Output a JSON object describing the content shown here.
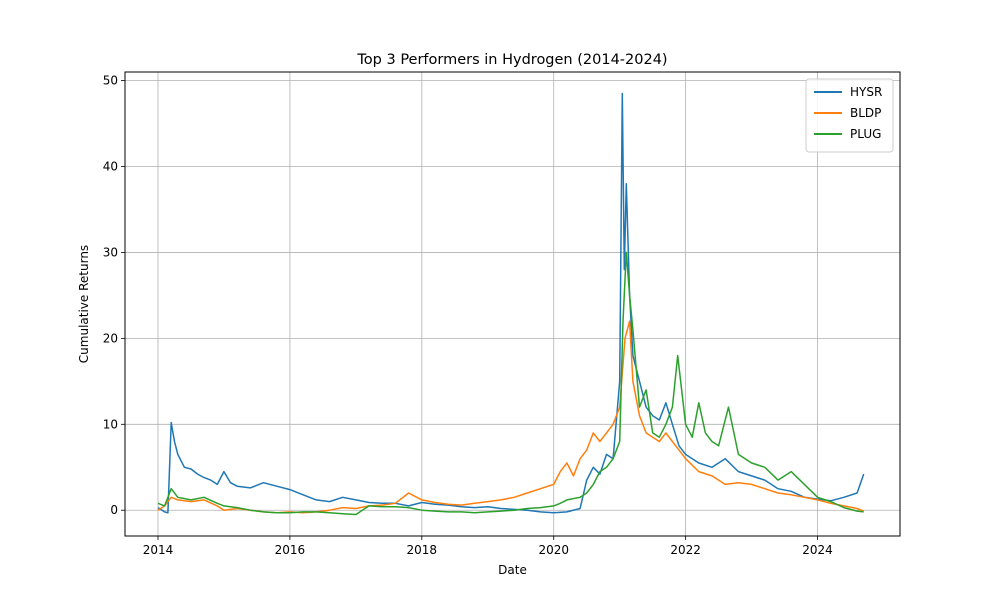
{
  "chart_data": {
    "type": "line",
    "title": "Top 3 Performers in Hydrogen (2014-2024)",
    "xlabel": "Date",
    "ylabel": "Cumulative Returns",
    "xlim": [
      2013.5,
      2025.25
    ],
    "ylim": [
      -3,
      51
    ],
    "x_ticks": [
      2014,
      2016,
      2018,
      2020,
      2022,
      2024
    ],
    "x_tick_labels": [
      "2014",
      "2016",
      "2018",
      "2020",
      "2022",
      "2024"
    ],
    "y_ticks": [
      0,
      10,
      20,
      30,
      40,
      50
    ],
    "y_tick_labels": [
      "0",
      "10",
      "20",
      "30",
      "40",
      "50"
    ],
    "grid": true,
    "legend_position": "top-right",
    "series": [
      {
        "name": "HYSR",
        "color": "#1f77b4",
        "x": [
          2014.0,
          2014.1,
          2014.15,
          2014.2,
          2014.25,
          2014.3,
          2014.4,
          2014.5,
          2014.6,
          2014.7,
          2014.8,
          2014.9,
          2015.0,
          2015.1,
          2015.2,
          2015.4,
          2015.6,
          2015.8,
          2016.0,
          2016.2,
          2016.4,
          2016.6,
          2016.8,
          2017.0,
          2017.2,
          2017.4,
          2017.6,
          2017.8,
          2018.0,
          2018.2,
          2018.4,
          2018.6,
          2018.8,
          2019.0,
          2019.2,
          2019.4,
          2019.6,
          2019.8,
          2020.0,
          2020.2,
          2020.4,
          2020.5,
          2020.6,
          2020.7,
          2020.8,
          2020.9,
          2021.0,
          2021.04,
          2021.07,
          2021.1,
          2021.15,
          2021.2,
          2021.3,
          2021.4,
          2021.5,
          2021.6,
          2021.7,
          2021.8,
          2021.9,
          2022.0,
          2022.2,
          2022.4,
          2022.6,
          2022.8,
          2023.0,
          2023.2,
          2023.4,
          2023.6,
          2023.8,
          2024.0,
          2024.2,
          2024.4,
          2024.6,
          2024.7
        ],
        "y": [
          0.3,
          -0.2,
          -0.3,
          10.2,
          8.0,
          6.5,
          5.0,
          4.8,
          4.2,
          3.8,
          3.5,
          3.0,
          4.5,
          3.2,
          2.8,
          2.6,
          3.2,
          2.8,
          2.4,
          1.8,
          1.2,
          1.0,
          1.5,
          1.2,
          0.9,
          0.8,
          0.8,
          0.5,
          0.9,
          0.7,
          0.6,
          0.4,
          0.3,
          0.4,
          0.2,
          0.1,
          0.0,
          -0.2,
          -0.3,
          -0.2,
          0.2,
          3.5,
          5.0,
          4.2,
          6.5,
          6.0,
          15.0,
          48.5,
          28.0,
          38.0,
          25.0,
          18.0,
          15.0,
          12.0,
          11.0,
          10.5,
          12.5,
          10.0,
          7.5,
          6.5,
          5.5,
          5.0,
          6.0,
          4.5,
          4.0,
          3.5,
          2.5,
          2.2,
          1.5,
          1.3,
          1.1,
          1.5,
          2.0,
          4.2
        ]
      },
      {
        "name": "BLDP",
        "color": "#ff7f0e",
        "x": [
          2014.0,
          2014.1,
          2014.2,
          2014.3,
          2014.5,
          2014.7,
          2014.9,
          2015.0,
          2015.2,
          2015.4,
          2015.6,
          2015.8,
          2016.0,
          2016.2,
          2016.4,
          2016.6,
          2016.8,
          2017.0,
          2017.2,
          2017.4,
          2017.6,
          2017.8,
          2018.0,
          2018.2,
          2018.4,
          2018.6,
          2018.8,
          2019.0,
          2019.2,
          2019.4,
          2019.6,
          2019.8,
          2020.0,
          2020.1,
          2020.2,
          2020.3,
          2020.4,
          2020.5,
          2020.6,
          2020.7,
          2020.8,
          2020.9,
          2021.0,
          2021.08,
          2021.15,
          2021.2,
          2021.3,
          2021.4,
          2021.5,
          2021.6,
          2021.7,
          2021.8,
          2021.9,
          2022.0,
          2022.2,
          2022.4,
          2022.6,
          2022.8,
          2023.0,
          2023.2,
          2023.4,
          2023.6,
          2023.8,
          2024.0,
          2024.2,
          2024.4,
          2024.6,
          2024.7
        ],
        "y": [
          0.0,
          0.5,
          1.5,
          1.2,
          1.0,
          1.2,
          0.5,
          0.0,
          0.2,
          0.0,
          -0.2,
          -0.3,
          -0.2,
          -0.3,
          -0.2,
          0.0,
          0.3,
          0.2,
          0.5,
          0.6,
          0.8,
          2.0,
          1.2,
          0.9,
          0.7,
          0.6,
          0.8,
          1.0,
          1.2,
          1.5,
          2.0,
          2.5,
          3.0,
          4.5,
          5.5,
          4.0,
          6.0,
          7.0,
          9.0,
          8.0,
          9.0,
          10.0,
          12.0,
          20.0,
          22.0,
          15.0,
          11.0,
          9.0,
          8.5,
          8.0,
          9.0,
          8.0,
          7.0,
          6.0,
          4.5,
          4.0,
          3.0,
          3.2,
          3.0,
          2.5,
          2.0,
          1.8,
          1.5,
          1.2,
          0.8,
          0.5,
          0.2,
          -0.1
        ]
      },
      {
        "name": "PLUG",
        "color": "#2ca02c",
        "x": [
          2014.0,
          2014.1,
          2014.2,
          2014.3,
          2014.5,
          2014.7,
          2014.9,
          2015.0,
          2015.2,
          2015.4,
          2015.6,
          2015.8,
          2016.0,
          2016.2,
          2016.4,
          2016.6,
          2016.8,
          2017.0,
          2017.2,
          2017.4,
          2017.6,
          2017.8,
          2018.0,
          2018.2,
          2018.4,
          2018.6,
          2018.8,
          2019.0,
          2019.2,
          2019.4,
          2019.6,
          2019.8,
          2020.0,
          2020.1,
          2020.2,
          2020.4,
          2020.5,
          2020.6,
          2020.7,
          2020.8,
          2020.9,
          2021.0,
          2021.05,
          2021.1,
          2021.15,
          2021.2,
          2021.3,
          2021.4,
          2021.5,
          2021.6,
          2021.7,
          2021.8,
          2021.88,
          2022.0,
          2022.1,
          2022.2,
          2022.3,
          2022.4,
          2022.5,
          2022.65,
          2022.8,
          2023.0,
          2023.2,
          2023.4,
          2023.6,
          2023.8,
          2024.0,
          2024.2,
          2024.4,
          2024.6,
          2024.7
        ],
        "y": [
          0.8,
          0.5,
          2.5,
          1.5,
          1.2,
          1.5,
          0.8,
          0.5,
          0.3,
          0.0,
          -0.2,
          -0.3,
          -0.3,
          -0.2,
          -0.2,
          -0.3,
          -0.4,
          -0.5,
          0.5,
          0.4,
          0.4,
          0.3,
          0.0,
          -0.1,
          -0.2,
          -0.2,
          -0.3,
          -0.2,
          -0.1,
          0.0,
          0.2,
          0.3,
          0.5,
          0.8,
          1.2,
          1.5,
          2.0,
          3.0,
          4.5,
          5.0,
          6.0,
          8.0,
          22.0,
          30.0,
          25.0,
          21.0,
          12.0,
          14.0,
          9.0,
          8.5,
          10.0,
          12.0,
          18.0,
          10.0,
          8.5,
          12.5,
          9.0,
          8.0,
          7.5,
          12.0,
          6.5,
          5.5,
          5.0,
          3.5,
          4.5,
          3.0,
          1.5,
          1.0,
          0.3,
          -0.1,
          -0.2
        ]
      }
    ]
  }
}
